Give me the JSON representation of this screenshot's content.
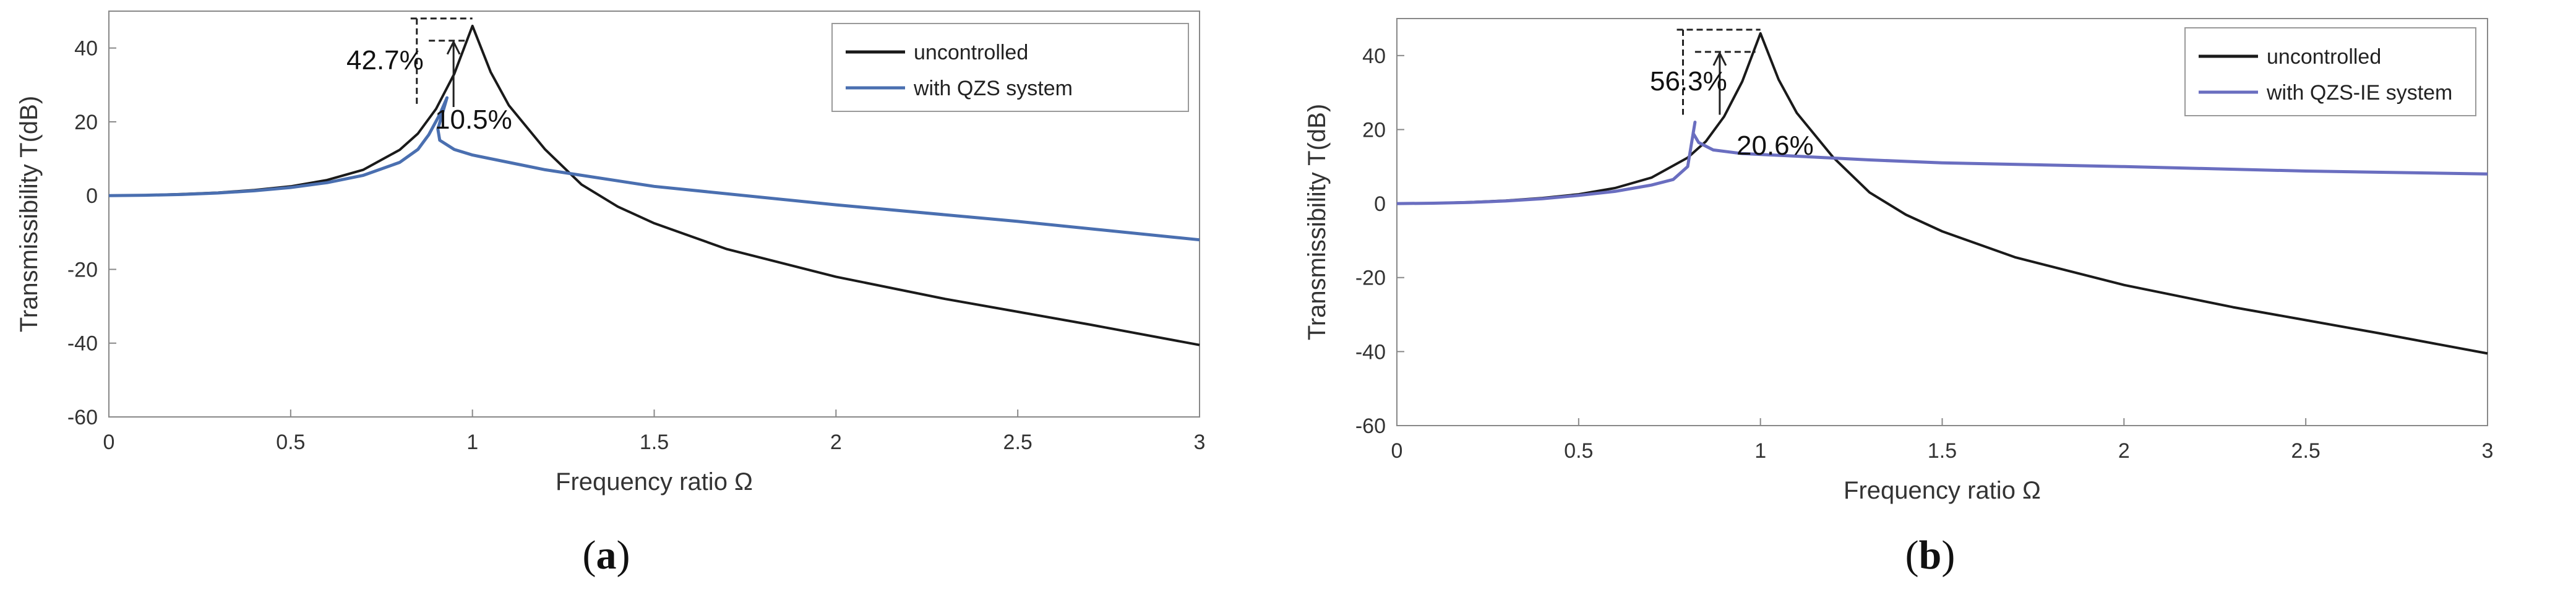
{
  "chart_data": [
    {
      "type": "line",
      "panel_label": "a",
      "xlabel": "Frequency ratio  Ω",
      "ylabel": "Transmissibility T(dB)",
      "xlim": [
        0,
        3
      ],
      "ylim": [
        -60,
        50
      ],
      "xticks": [
        0,
        0.5,
        1,
        1.5,
        2,
        2.5,
        3
      ],
      "xtick_labels": [
        "0",
        "0.5",
        "1",
        "1.5",
        "2",
        "2.5",
        "3"
      ],
      "yticks": [
        -60,
        -40,
        -20,
        0,
        20,
        40
      ],
      "ytick_labels": [
        "-60",
        "-40",
        "-20",
        "0",
        "20",
        "40"
      ],
      "legend_position": "top-right",
      "series": [
        {
          "name": "uncontrolled",
          "color": "#1a1a1a",
          "points": [
            [
              0,
              0
            ],
            [
              0.1,
              0.1
            ],
            [
              0.2,
              0.4
            ],
            [
              0.3,
              0.8
            ],
            [
              0.4,
              1.5
            ],
            [
              0.5,
              2.5
            ],
            [
              0.6,
              4.2
            ],
            [
              0.7,
              7.0
            ],
            [
              0.8,
              12.4
            ],
            [
              0.85,
              16.8
            ],
            [
              0.9,
              23.5
            ],
            [
              0.95,
              33.0
            ],
            [
              1.0,
              46.0
            ],
            [
              1.05,
              33.5
            ],
            [
              1.1,
              24.5
            ],
            [
              1.2,
              12.5
            ],
            [
              1.3,
              3.0
            ],
            [
              1.4,
              -3.0
            ],
            [
              1.5,
              -7.5
            ],
            [
              1.7,
              -14.5
            ],
            [
              2.0,
              -22.0
            ],
            [
              2.3,
              -28.0
            ],
            [
              2.5,
              -31.5
            ],
            [
              2.7,
              -35.0
            ],
            [
              3.0,
              -40.5
            ]
          ]
        },
        {
          "name": "with QZS system",
          "color": "#4a6fb0",
          "points": [
            [
              0,
              0
            ],
            [
              0.1,
              0.1
            ],
            [
              0.2,
              0.3
            ],
            [
              0.3,
              0.7
            ],
            [
              0.4,
              1.3
            ],
            [
              0.5,
              2.2
            ],
            [
              0.6,
              3.5
            ],
            [
              0.7,
              5.5
            ],
            [
              0.8,
              9.0
            ],
            [
              0.85,
              12.5
            ],
            [
              0.88,
              16.5
            ],
            [
              0.91,
              22.0
            ],
            [
              0.93,
              26.5
            ],
            [
              0.905,
              18.0
            ],
            [
              0.91,
              15.0
            ],
            [
              0.95,
              12.5
            ],
            [
              1.0,
              11.0
            ],
            [
              1.1,
              9.0
            ],
            [
              1.2,
              7.0
            ],
            [
              1.5,
              2.5
            ],
            [
              2.0,
              -2.5
            ],
            [
              2.5,
              -7.0
            ],
            [
              3.0,
              -12.0
            ]
          ]
        }
      ],
      "annotations": [
        {
          "text": "42.7%",
          "position": "left of peak"
        },
        {
          "text": "10.5%",
          "position": "below peak"
        }
      ]
    },
    {
      "type": "line",
      "panel_label": "b",
      "xlabel": "Frequency ratio  Ω",
      "ylabel": "Transmissibility T(dB)",
      "xlim": [
        0,
        3
      ],
      "ylim": [
        -60,
        50
      ],
      "xticks": [
        0,
        0.5,
        1,
        1.5,
        2,
        2.5,
        3
      ],
      "xtick_labels": [
        "0",
        "0.5",
        "1",
        "1.5",
        "2",
        "2.5",
        "3"
      ],
      "yticks": [
        -60,
        -40,
        -20,
        0,
        20,
        40
      ],
      "ytick_labels": [
        "-60",
        "-40",
        "-20",
        "0",
        "20",
        "40"
      ],
      "legend_position": "top-right",
      "series": [
        {
          "name": "uncontrolled",
          "color": "#1a1a1a",
          "points": [
            [
              0,
              0
            ],
            [
              0.1,
              0.1
            ],
            [
              0.2,
              0.4
            ],
            [
              0.3,
              0.8
            ],
            [
              0.4,
              1.5
            ],
            [
              0.5,
              2.5
            ],
            [
              0.6,
              4.2
            ],
            [
              0.7,
              7.0
            ],
            [
              0.8,
              12.4
            ],
            [
              0.85,
              16.8
            ],
            [
              0.9,
              23.5
            ],
            [
              0.95,
              33.0
            ],
            [
              1.0,
              46.0
            ],
            [
              1.05,
              33.5
            ],
            [
              1.1,
              24.5
            ],
            [
              1.2,
              12.5
            ],
            [
              1.3,
              3.0
            ],
            [
              1.4,
              -3.0
            ],
            [
              1.5,
              -7.5
            ],
            [
              1.7,
              -14.5
            ],
            [
              2.0,
              -22.0
            ],
            [
              2.3,
              -28.0
            ],
            [
              2.5,
              -31.5
            ],
            [
              2.7,
              -35.0
            ],
            [
              3.0,
              -40.5
            ]
          ]
        },
        {
          "name": "with QZS-IE system",
          "color": "#6a6ec0",
          "points": [
            [
              0,
              0
            ],
            [
              0.1,
              0.1
            ],
            [
              0.2,
              0.3
            ],
            [
              0.3,
              0.7
            ],
            [
              0.4,
              1.3
            ],
            [
              0.5,
              2.2
            ],
            [
              0.6,
              3.3
            ],
            [
              0.7,
              5.0
            ],
            [
              0.76,
              6.5
            ],
            [
              0.8,
              10.0
            ],
            [
              0.81,
              16.0
            ],
            [
              0.82,
              22.0
            ],
            [
              0.815,
              19.0
            ],
            [
              0.83,
              16.5
            ],
            [
              0.87,
              14.5
            ],
            [
              0.95,
              13.5
            ],
            [
              1.1,
              12.8
            ],
            [
              1.3,
              11.8
            ],
            [
              1.5,
              11.0
            ],
            [
              2.0,
              10.0
            ],
            [
              2.5,
              8.8
            ],
            [
              3.0,
              8.0
            ]
          ]
        }
      ],
      "annotations": [
        {
          "text": "56.3%",
          "position": "left of peak"
        },
        {
          "text": "20.6%",
          "position": "below peak"
        }
      ]
    }
  ]
}
